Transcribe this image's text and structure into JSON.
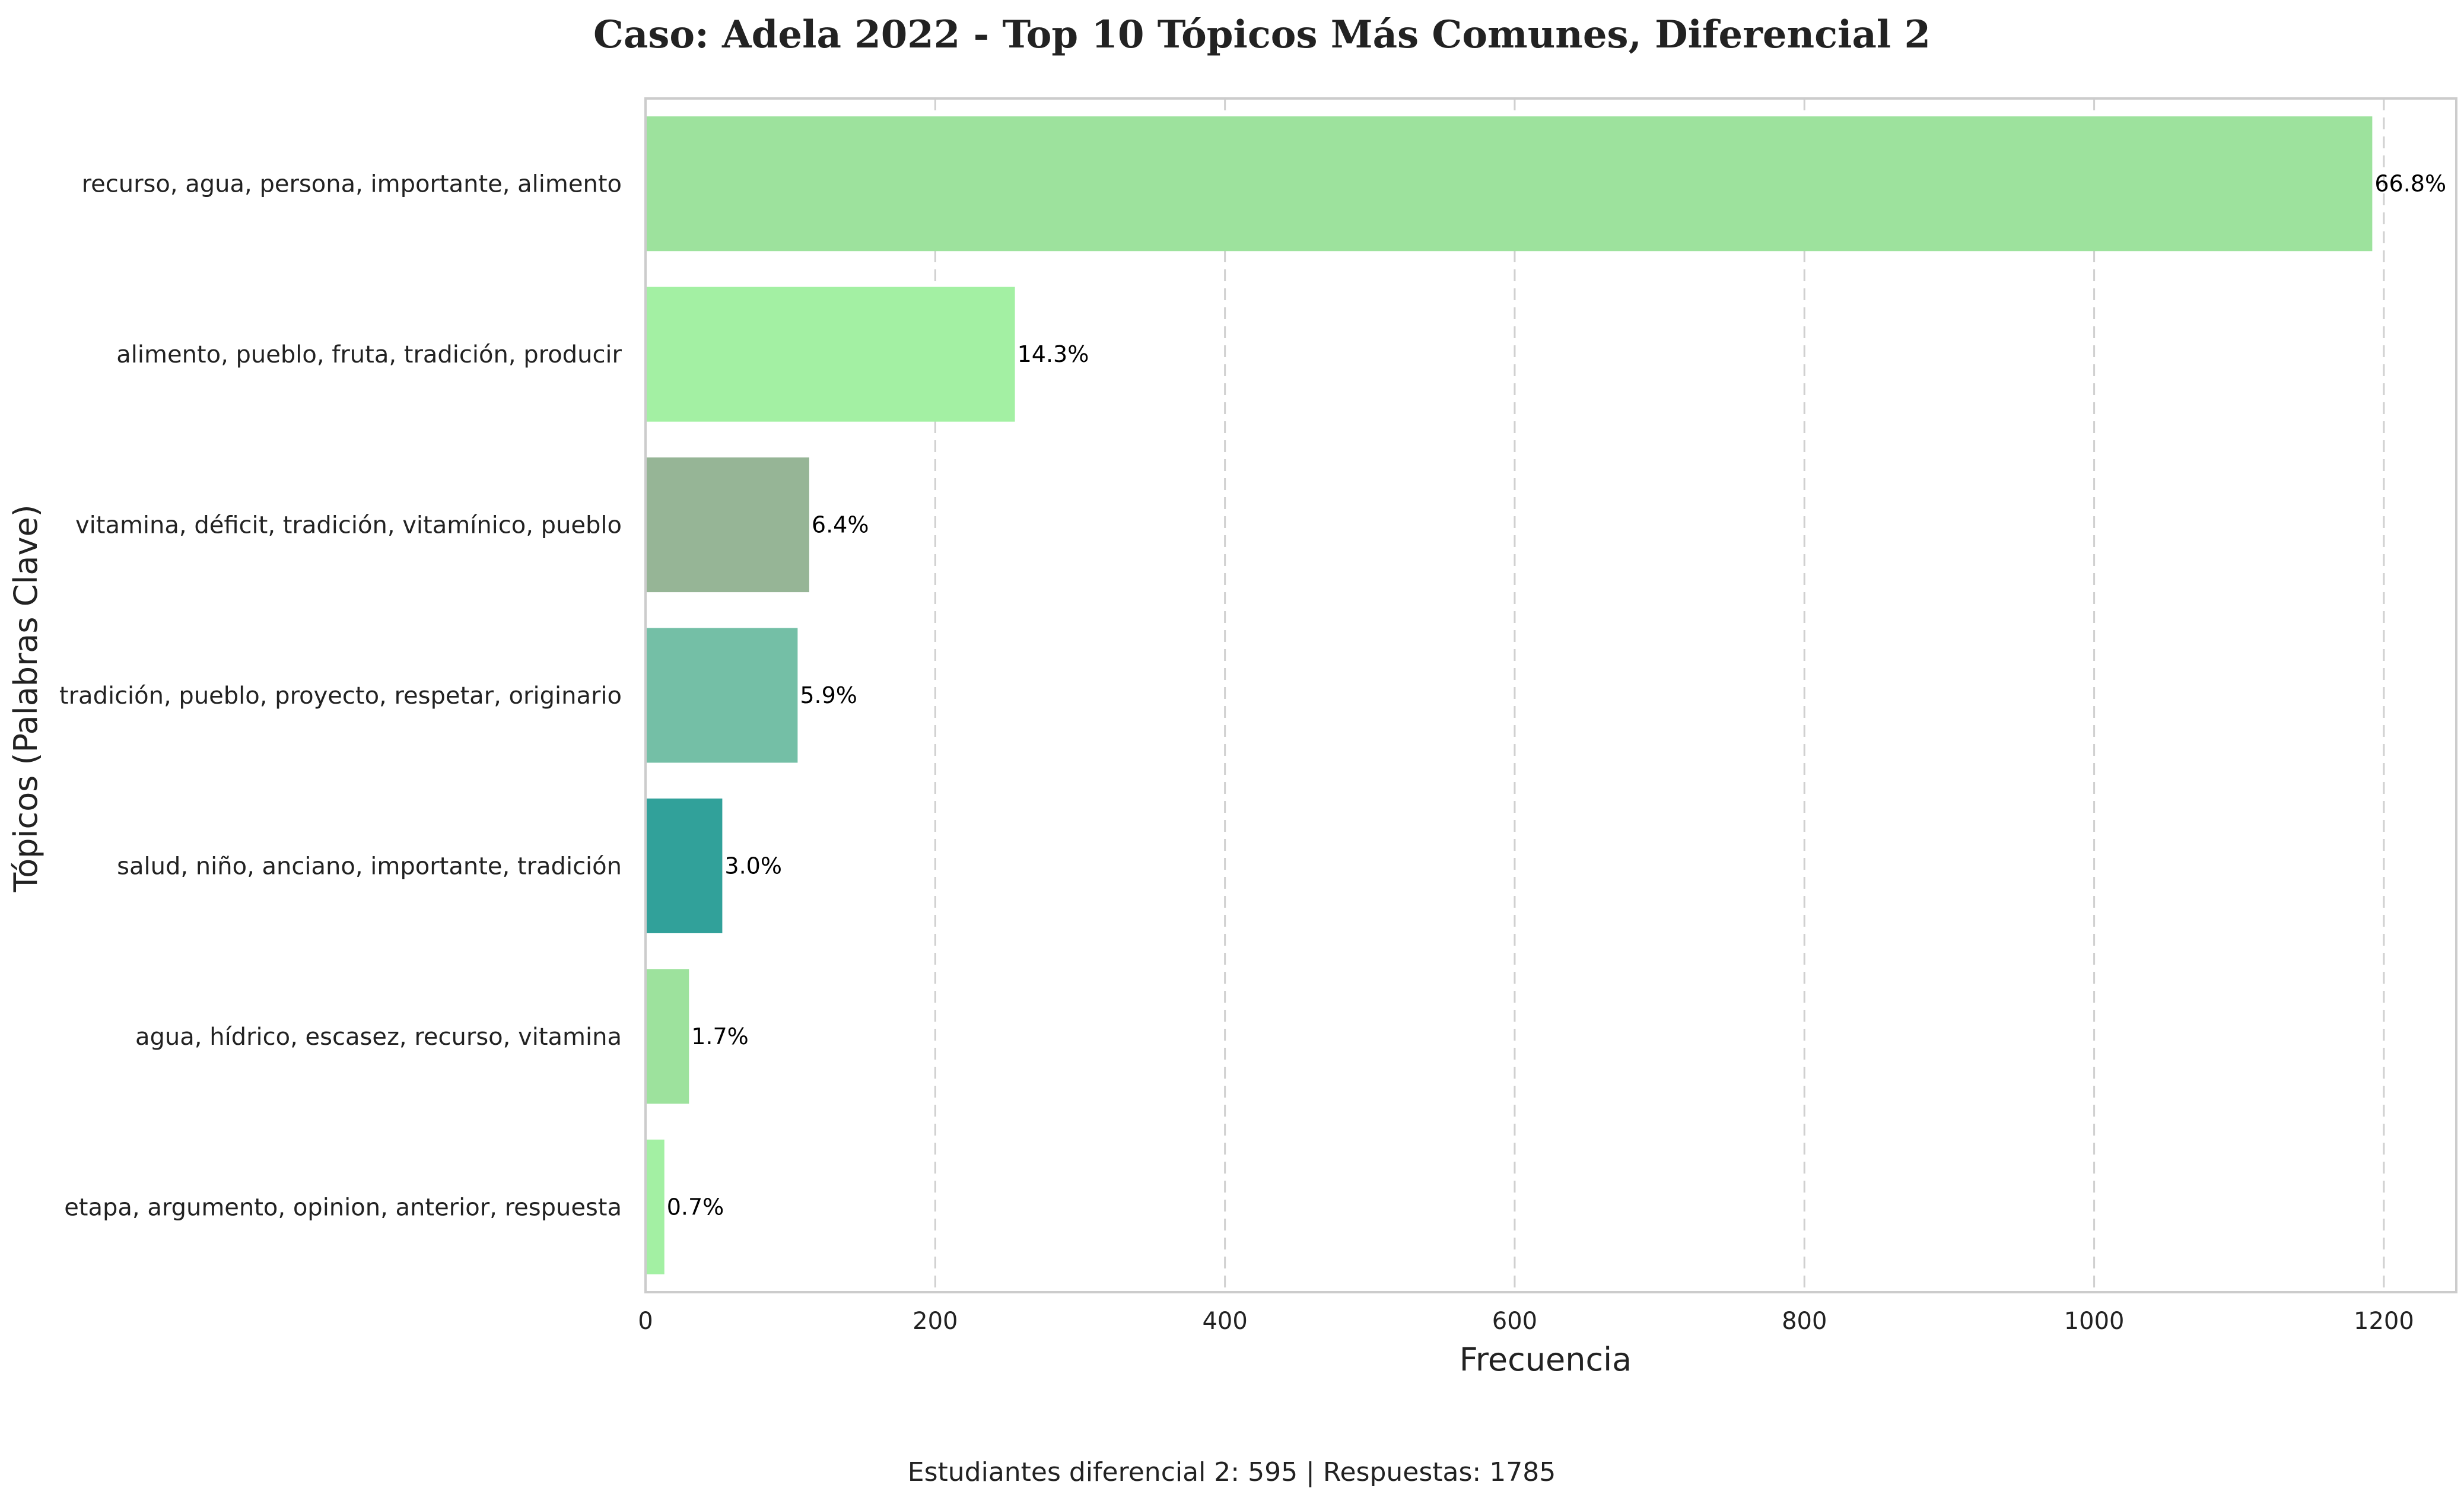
{
  "chart_data": {
    "type": "bar",
    "orientation": "horizontal",
    "title": "Caso: Adela 2022 - Top 10 Tópicos Más Comunes, Diferencial 2",
    "xlabel": "Frecuencia",
    "ylabel": "Tópicos (Palabras Clave)",
    "xlim": [
      0,
      1250
    ],
    "xticks": [
      0,
      200,
      400,
      600,
      800,
      1000,
      1200
    ],
    "grid": "x-dashed",
    "categories": [
      "recurso, agua, persona, importante, alimento",
      "alimento, pueblo, fruta, tradición, producir",
      "vitamina, déficit, tradición, vitamínico, pueblo",
      "tradición, pueblo, proyecto, respetar, originario",
      "salud, niño, anciano, importante, tradición",
      "agua, hídrico, escasez, recurso, vitamina",
      "etapa, argumento, opinion, anterior, respuesta"
    ],
    "values": [
      1192,
      255,
      113,
      105,
      53,
      30,
      13
    ],
    "labels": [
      "66.8%",
      "14.3%",
      "6.4%",
      "5.9%",
      "3.0%",
      "1.7%",
      "0.7%"
    ],
    "colors": [
      "#9de29d",
      "#a3f0a3",
      "#96b596",
      "#74bfa6",
      "#31a19a",
      "#9de29d",
      "#a3f0a3"
    ]
  },
  "footer": "Estudiantes diferencial 2: 595 | Respuestas: 1785"
}
